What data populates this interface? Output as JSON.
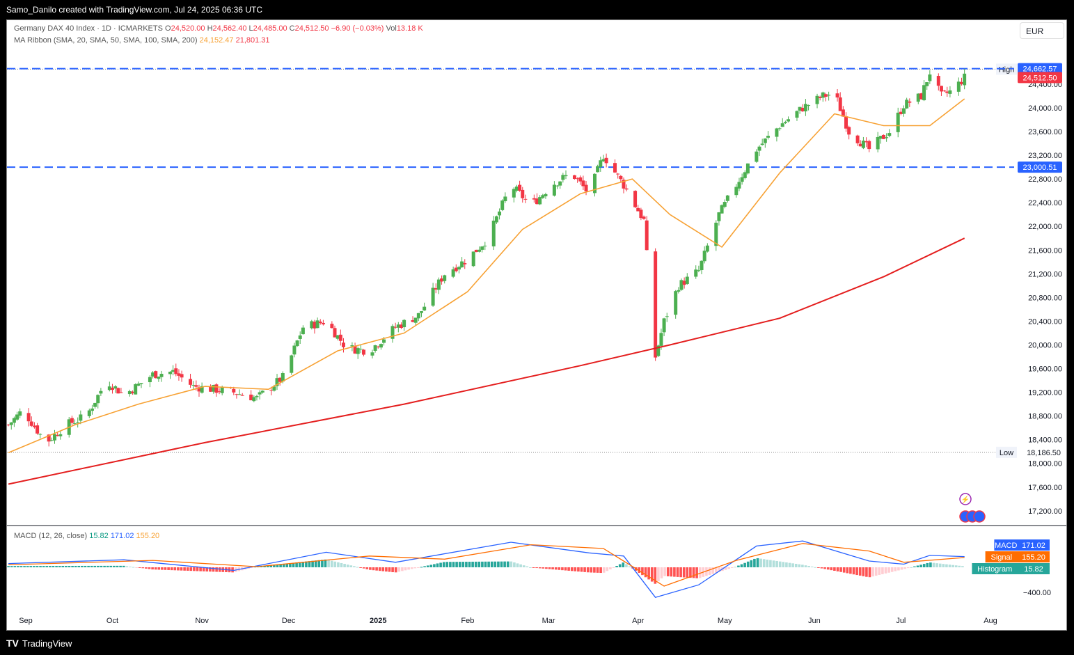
{
  "header_text": "Samo_Danilo created with TradingView.com, Jul 24, 2025 06:36 UTC",
  "legend": {
    "title": "Germany DAX 40 Index · 1D · ICMARKETS",
    "o_label": "O",
    "o_value": "24,520.00",
    "h_label": "H",
    "h_value": "24,562.40",
    "l_label": "L",
    "l_value": "24,485.00",
    "c_label": "C",
    "c_value": "24,512.50",
    "change": "−6.90 (−0.03%)",
    "vol_label": "Vol",
    "vol_value": "13.18 K",
    "ma_title": "MA Ribbon (SMA, 20, SMA, 50, SMA, 100, SMA, 200)",
    "ma_value1": "24,152.47",
    "ma_value2": "21,801.31",
    "macd_title": "MACD (12, 26, close)",
    "macd_hist": "15.82",
    "macd_macd": "171.02",
    "macd_signal": "155.20"
  },
  "currency": "EUR",
  "footer_brand": "TradingView",
  "colors": {
    "up": "#4caf50",
    "down": "#f23645",
    "ma20": "#f7a133",
    "ma200": "#e41e1e",
    "level_line": "#2962ff",
    "macd_line": "#2962ff",
    "signal_line": "#ff6d00",
    "hist_up_strong": "#26a69a",
    "hist_up_weak": "#b2dfdb",
    "hist_down_strong": "#ff5252",
    "hist_down_weak": "#ffcdd2"
  },
  "chart_data": {
    "type": "candlestick",
    "x_labels": [
      "Sep",
      "Oct",
      "Nov",
      "Dec",
      "2025",
      "Feb",
      "Mar",
      "Apr",
      "May",
      "Jun",
      "Jul",
      "Aug"
    ],
    "y_ticks": [
      "24,400.00",
      "24,000.00",
      "23,600.00",
      "23,200.00",
      "22,800.00",
      "22,400.00",
      "22,000.00",
      "21,600.00",
      "21,200.00",
      "20,800.00",
      "20,400.00",
      "20,000.00",
      "19,600.00",
      "19,200.00",
      "18,800.00",
      "18,400.00",
      "18,000.00",
      "17,600.00",
      "17,200.00"
    ],
    "y_tick_values": [
      24400,
      24000,
      23600,
      23200,
      22800,
      22400,
      22000,
      21600,
      21200,
      20800,
      20400,
      20000,
      19600,
      19200,
      18800,
      18400,
      18000,
      17600,
      17200
    ],
    "price_path": [
      {
        "date": "2024-08-26",
        "close": 18650
      },
      {
        "date": "2024-08-31",
        "close": 18900
      },
      {
        "date": "2024-09-08",
        "close": 18350
      },
      {
        "date": "2024-09-15",
        "close": 18650
      },
      {
        "date": "2024-09-22",
        "close": 18800
      },
      {
        "date": "2024-09-29",
        "close": 19400
      },
      {
        "date": "2024-10-05",
        "close": 19150
      },
      {
        "date": "2024-10-15",
        "close": 19500
      },
      {
        "date": "2024-10-22",
        "close": 19550
      },
      {
        "date": "2024-10-29",
        "close": 19300
      },
      {
        "date": "2024-11-05",
        "close": 19250
      },
      {
        "date": "2024-11-12",
        "close": 19200
      },
      {
        "date": "2024-11-20",
        "close": 19100
      },
      {
        "date": "2024-11-29",
        "close": 19450
      },
      {
        "date": "2024-12-06",
        "close": 20300
      },
      {
        "date": "2024-12-14",
        "close": 20400
      },
      {
        "date": "2024-12-21",
        "close": 19950
      },
      {
        "date": "2024-12-29",
        "close": 19900
      },
      {
        "date": "2025-01-07",
        "close": 20300
      },
      {
        "date": "2025-01-15",
        "close": 20500
      },
      {
        "date": "2025-01-24",
        "close": 21200
      },
      {
        "date": "2025-02-01",
        "close": 21450
      },
      {
        "date": "2025-02-08",
        "close": 21800
      },
      {
        "date": "2025-02-16",
        "close": 22700
      },
      {
        "date": "2025-02-23",
        "close": 22350
      },
      {
        "date": "2025-03-02",
        "close": 22700
      },
      {
        "date": "2025-03-09",
        "close": 22900
      },
      {
        "date": "2025-03-15",
        "close": 22550
      },
      {
        "date": "2025-03-20",
        "close": 23200
      },
      {
        "date": "2025-03-27",
        "close": 22700
      },
      {
        "date": "2025-04-03",
        "close": 22100
      },
      {
        "date": "2025-04-07",
        "close": 19800
      },
      {
        "date": "2025-04-10",
        "close": 20400
      },
      {
        "date": "2025-04-15",
        "close": 21000
      },
      {
        "date": "2025-04-22",
        "close": 21250
      },
      {
        "date": "2025-04-29",
        "close": 22200
      },
      {
        "date": "2025-05-05",
        "close": 22700
      },
      {
        "date": "2025-05-12",
        "close": 23300
      },
      {
        "date": "2025-05-20",
        "close": 23700
      },
      {
        "date": "2025-05-28",
        "close": 24000
      },
      {
        "date": "2025-06-04",
        "close": 24200
      },
      {
        "date": "2025-06-08",
        "close": 24250
      },
      {
        "date": "2025-06-13",
        "close": 23600
      },
      {
        "date": "2025-06-20",
        "close": 23300
      },
      {
        "date": "2025-06-27",
        "close": 23600
      },
      {
        "date": "2025-07-02",
        "close": 24050
      },
      {
        "date": "2025-07-08",
        "close": 24200
      },
      {
        "date": "2025-07-11",
        "close": 24600
      },
      {
        "date": "2025-07-15",
        "close": 24200
      },
      {
        "date": "2025-07-19",
        "close": 24300
      },
      {
        "date": "2025-07-23",
        "close": 24512.5
      }
    ],
    "ma20": [
      {
        "date": "2024-08-26",
        "close": 18180
      },
      {
        "date": "2024-09-18",
        "close": 18650
      },
      {
        "date": "2024-10-10",
        "close": 19000
      },
      {
        "date": "2024-11-02",
        "close": 19300
      },
      {
        "date": "2024-11-24",
        "close": 19250
      },
      {
        "date": "2024-12-18",
        "close": 19900
      },
      {
        "date": "2025-01-10",
        "close": 20200
      },
      {
        "date": "2025-02-01",
        "close": 20900
      },
      {
        "date": "2025-02-20",
        "close": 21950
      },
      {
        "date": "2025-03-12",
        "close": 22550
      },
      {
        "date": "2025-03-30",
        "close": 22800
      },
      {
        "date": "2025-04-12",
        "close": 22200
      },
      {
        "date": "2025-04-30",
        "close": 21650
      },
      {
        "date": "2025-05-20",
        "close": 22900
      },
      {
        "date": "2025-06-08",
        "close": 23900
      },
      {
        "date": "2025-06-25",
        "close": 23700
      },
      {
        "date": "2025-07-11",
        "close": 23700
      },
      {
        "date": "2025-07-23",
        "close": 24152.47
      }
    ],
    "ma200": [
      {
        "date": "2024-08-26",
        "close": 17650
      },
      {
        "date": "2024-11-02",
        "close": 18350
      },
      {
        "date": "2025-01-10",
        "close": 19000
      },
      {
        "date": "2025-03-12",
        "close": 19650
      },
      {
        "date": "2025-04-12",
        "close": 20000
      },
      {
        "date": "2025-05-20",
        "close": 20450
      },
      {
        "date": "2025-06-25",
        "close": 21150
      },
      {
        "date": "2025-07-23",
        "close": 21801.31
      }
    ],
    "horizontal_levels": [
      {
        "value": "24,662.57",
        "price": 24662.57
      },
      {
        "value": "23,000.51",
        "price": 23000.51
      }
    ],
    "high_label": "High",
    "high_value": "24,653.10",
    "high_price": 24653.1,
    "low_label": "Low",
    "low_value": "18,186.50",
    "low_price": 18186.5,
    "last_price_label": "24,512.50",
    "last_price": 24512.5,
    "macd": {
      "ticks": [
        "−400.00"
      ],
      "tick_values": [
        -400
      ],
      "labels": {
        "macd": "MACD",
        "signal": "Signal",
        "histogram": "Histogram"
      },
      "macd_line": [
        {
          "date": "2024-08-26",
          "value": 60
        },
        {
          "date": "2024-10-05",
          "value": 120
        },
        {
          "date": "2024-11-12",
          "value": -50
        },
        {
          "date": "2024-12-14",
          "value": 240
        },
        {
          "date": "2025-01-07",
          "value": 80
        },
        {
          "date": "2025-02-16",
          "value": 400
        },
        {
          "date": "2025-03-15",
          "value": 230
        },
        {
          "date": "2025-03-27",
          "value": 180
        },
        {
          "date": "2025-04-07",
          "value": -480
        },
        {
          "date": "2025-04-22",
          "value": -280
        },
        {
          "date": "2025-05-12",
          "value": 340
        },
        {
          "date": "2025-05-28",
          "value": 420
        },
        {
          "date": "2025-06-20",
          "value": 100
        },
        {
          "date": "2025-07-02",
          "value": 50
        },
        {
          "date": "2025-07-11",
          "value": 190
        },
        {
          "date": "2025-07-23",
          "value": 171.02
        }
      ],
      "signal_line": [
        {
          "date": "2024-08-26",
          "value": 40
        },
        {
          "date": "2024-10-15",
          "value": 110
        },
        {
          "date": "2024-11-20",
          "value": 10
        },
        {
          "date": "2024-12-29",
          "value": 180
        },
        {
          "date": "2025-01-24",
          "value": 130
        },
        {
          "date": "2025-02-23",
          "value": 360
        },
        {
          "date": "2025-03-20",
          "value": 300
        },
        {
          "date": "2025-04-10",
          "value": -300
        },
        {
          "date": "2025-05-05",
          "value": 110
        },
        {
          "date": "2025-05-28",
          "value": 380
        },
        {
          "date": "2025-06-20",
          "value": 260
        },
        {
          "date": "2025-07-02",
          "value": 80
        },
        {
          "date": "2025-07-23",
          "value": 155.2
        }
      ]
    }
  }
}
